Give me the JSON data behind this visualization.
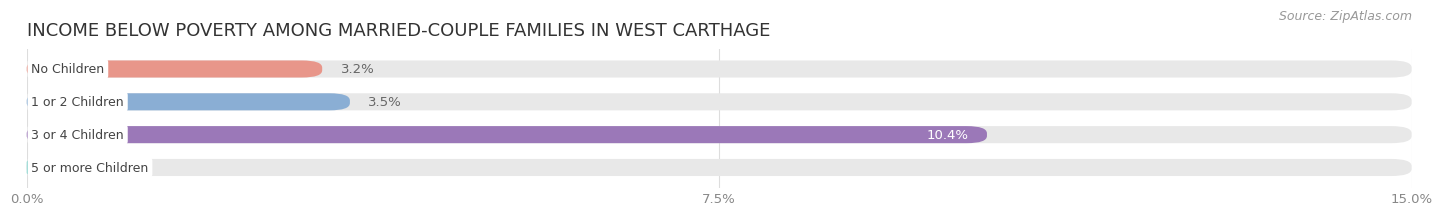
{
  "title": "INCOME BELOW POVERTY AMONG MARRIED-COUPLE FAMILIES IN WEST CARTHAGE",
  "source": "Source: ZipAtlas.com",
  "categories": [
    "No Children",
    "1 or 2 Children",
    "3 or 4 Children",
    "5 or more Children"
  ],
  "values": [
    3.2,
    3.5,
    10.4,
    0.0
  ],
  "bar_colors": [
    "#e8968a",
    "#8aaed4",
    "#9b78b8",
    "#6ec8c0"
  ],
  "bar_bg_color": "#e8e8e8",
  "xlim": [
    0,
    15.0
  ],
  "xticks": [
    0.0,
    7.5,
    15.0
  ],
  "xtick_labels": [
    "0.0%",
    "7.5%",
    "15.0%"
  ],
  "value_label_color_outside": "#666666",
  "value_label_color_inside": "#ffffff",
  "inside_threshold": 5.0,
  "label_text_color": "#444444",
  "title_fontsize": 13,
  "source_fontsize": 9,
  "tick_fontsize": 9.5,
  "bar_label_fontsize": 9,
  "value_fontsize": 9.5,
  "bar_height": 0.52,
  "background_color": "#ffffff",
  "grid_color": "#dddddd"
}
